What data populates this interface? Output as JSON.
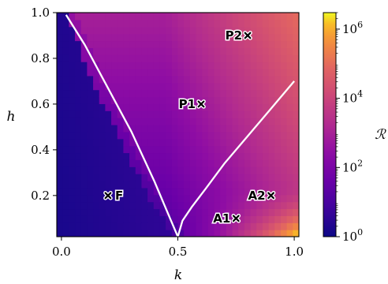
{
  "chart_data": {
    "type": "heatmap",
    "xlabel": "k",
    "ylabel": "h",
    "xlim": [
      -0.02,
      1.02
    ],
    "ylim": [
      0.02,
      1.0
    ],
    "x_ticks": [
      {
        "value": 0.0,
        "label": "0.0"
      },
      {
        "value": 0.5,
        "label": "0.5"
      },
      {
        "value": 1.0,
        "label": "1.0"
      }
    ],
    "y_ticks": [
      {
        "value": 0.2,
        "label": "0.2"
      },
      {
        "value": 0.4,
        "label": "0.4"
      },
      {
        "value": 0.6,
        "label": "0.6"
      },
      {
        "value": 0.8,
        "label": "0.8"
      },
      {
        "value": 1.0,
        "label": "1.0"
      }
    ],
    "colorbar": {
      "label": "ℛ",
      "scale": "log",
      "range": [
        1,
        3000000
      ],
      "colormap": "plasma",
      "ticks": [
        {
          "exp": 0,
          "base": "10",
          "power": "0"
        },
        {
          "exp": 2,
          "base": "10",
          "power": "2"
        },
        {
          "exp": 4,
          "base": "10",
          "power": "4"
        },
        {
          "exp": 6,
          "base": "10",
          "power": "6"
        }
      ]
    },
    "boundary_curves": [
      {
        "points": [
          [
            0.02,
            0.99
          ],
          [
            0.1,
            0.86
          ],
          [
            0.2,
            0.67
          ],
          [
            0.3,
            0.48
          ],
          [
            0.4,
            0.26
          ],
          [
            0.45,
            0.14
          ],
          [
            0.5,
            0.02
          ]
        ]
      },
      {
        "points": [
          [
            0.5,
            0.02
          ],
          [
            0.52,
            0.09
          ],
          [
            0.56,
            0.15
          ],
          [
            0.62,
            0.23
          ],
          [
            0.7,
            0.34
          ],
          [
            0.8,
            0.46
          ],
          [
            0.9,
            0.58
          ],
          [
            1.0,
            0.7
          ]
        ]
      }
    ],
    "points": [
      {
        "name": "F",
        "k": 0.2,
        "h": 0.2
      },
      {
        "name": "P1",
        "k": 0.6,
        "h": 0.6
      },
      {
        "name": "P2",
        "k": 0.8,
        "h": 0.9
      },
      {
        "name": "A1",
        "k": 0.75,
        "h": 0.1
      },
      {
        "name": "A2",
        "k": 0.9,
        "h": 0.2
      }
    ]
  }
}
